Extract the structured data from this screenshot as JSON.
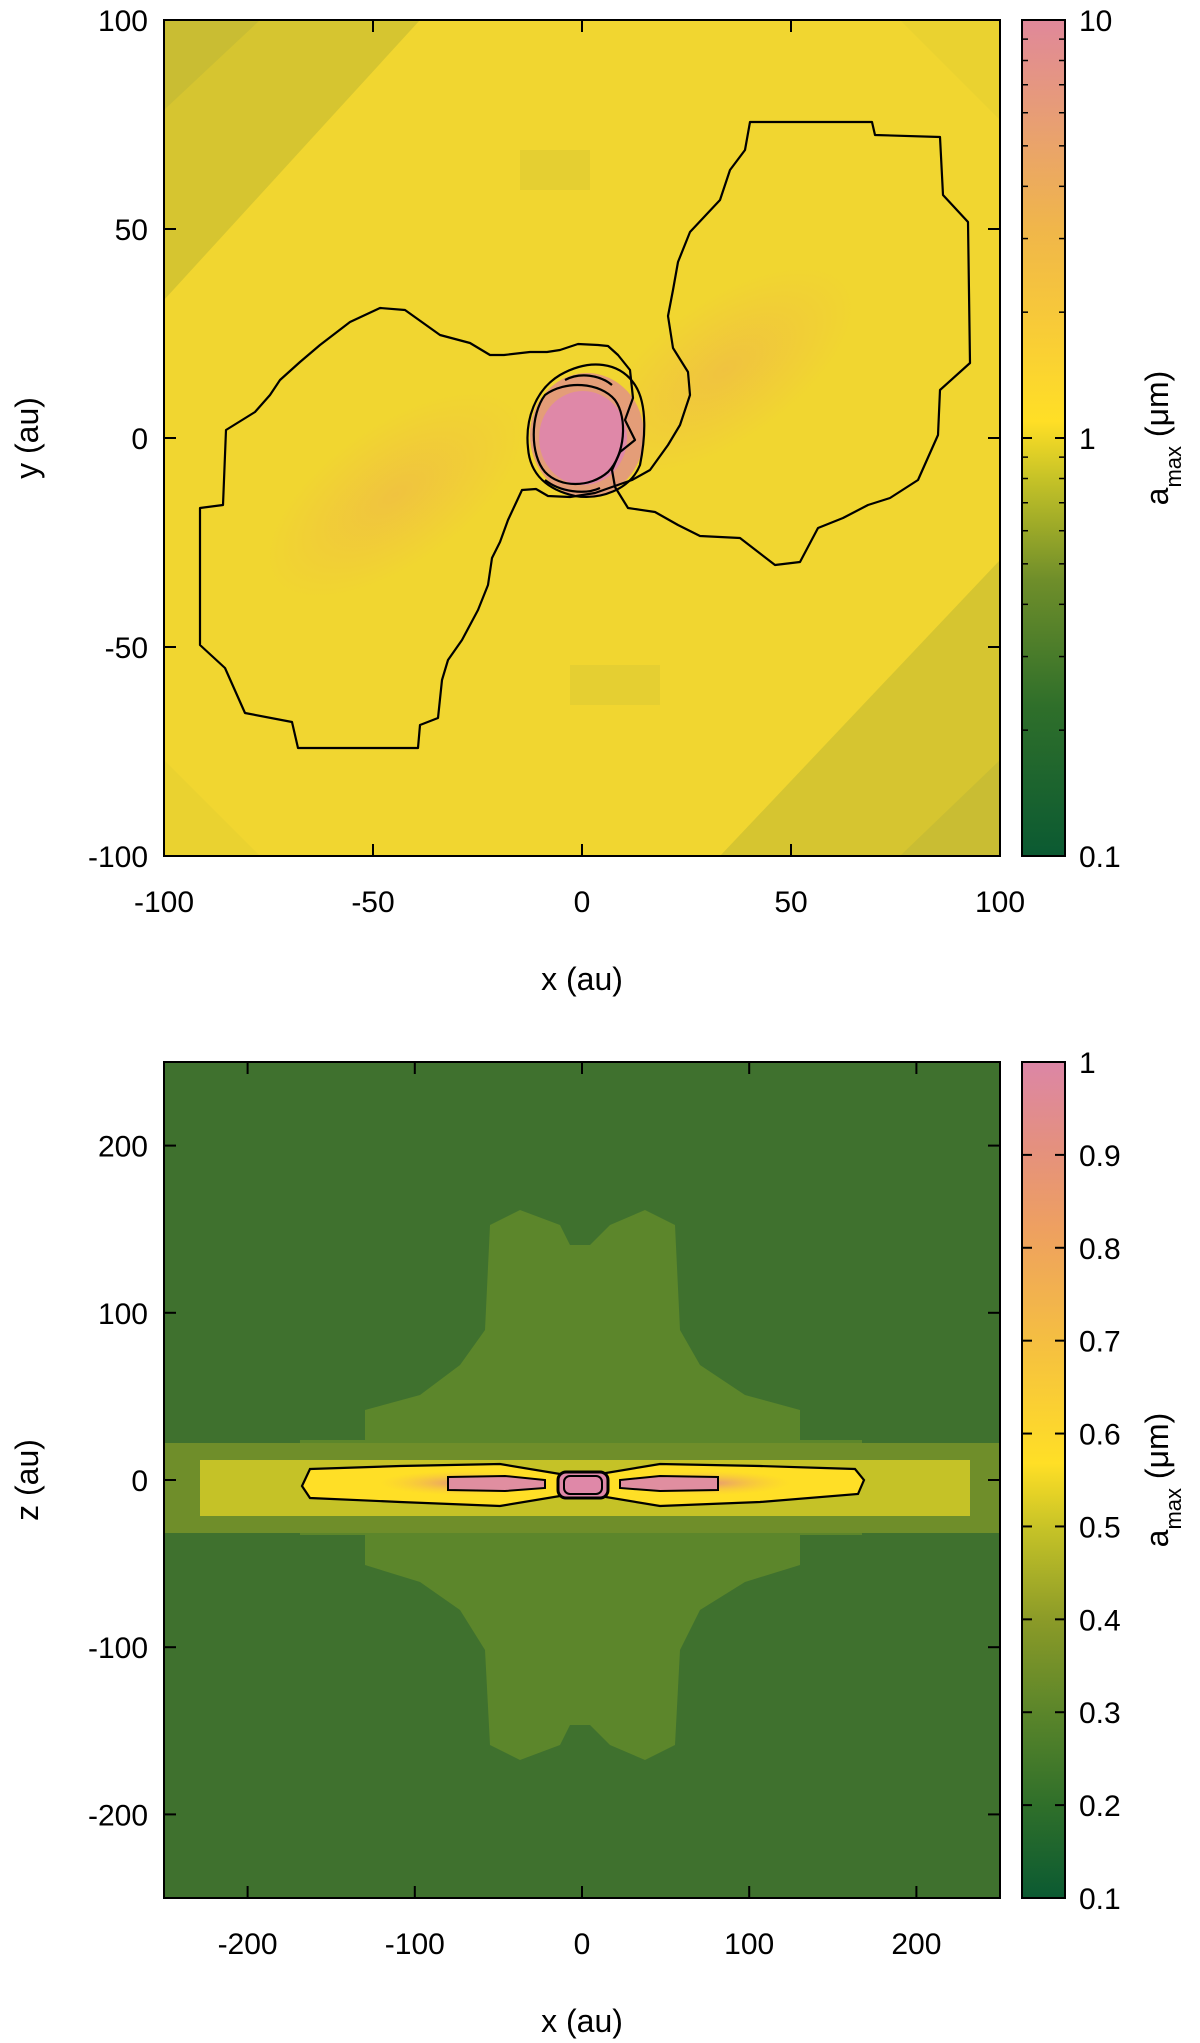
{
  "chart_data": [
    {
      "type": "heatmap",
      "panel": "top",
      "xlabel": "x (au)",
      "ylabel": "y (au)",
      "xlim": [
        -100,
        100
      ],
      "ylim": [
        -100,
        100
      ],
      "x_ticks": [
        "-100",
        "-50",
        "0",
        "50",
        "100"
      ],
      "y_ticks": [
        "100",
        "50",
        "0",
        "-50",
        "-100"
      ],
      "colorbar": {
        "label_main": "a",
        "label_sub": "max",
        "label_unit": " (μm)",
        "scale": "log",
        "range": [
          0.1,
          10
        ],
        "tick_labels": [
          "10",
          "1",
          "0.1"
        ],
        "colors": [
          "#0b5a32",
          "#2f6f2a",
          "#6f8e2a",
          "#c5c227",
          "#ffdf26",
          "#f0b64a",
          "#e0889a"
        ]
      },
      "background_color": "#f1d630",
      "corner_color": "#cdc032",
      "features": [
        {
          "name": "outer-bowtie-contour",
          "level": 1
        },
        {
          "name": "central-clump",
          "level": 10
        }
      ]
    },
    {
      "type": "heatmap",
      "panel": "bottom",
      "xlabel": "x (au)",
      "ylabel": "z (au)",
      "xlim": [
        -250,
        250
      ],
      "ylim": [
        -250,
        250
      ],
      "x_ticks": [
        "-200",
        "-100",
        "0",
        "100",
        "200"
      ],
      "y_ticks": [
        "200",
        "100",
        "0",
        "-100",
        "-200"
      ],
      "colorbar": {
        "label_main": "a",
        "label_sub": "max",
        "label_unit": " (μm)",
        "scale": "linear",
        "range": [
          0.1,
          1
        ],
        "tick_labels": [
          "1",
          "0.9",
          "0.8",
          "0.7",
          "0.6",
          "0.5",
          "0.4",
          "0.3",
          "0.2",
          "0.1"
        ],
        "colors": [
          "#0b5a32",
          "#2f6f2a",
          "#5a852a",
          "#8a9a28",
          "#c5c227",
          "#ffdf26",
          "#f5c040",
          "#eea060",
          "#e4907f",
          "#dc86a6"
        ]
      },
      "background_color": "#3f712e",
      "features": [
        {
          "name": "outflow-region",
          "level": 0.3
        },
        {
          "name": "midplane-disk",
          "level": 0.5
        }
      ]
    }
  ]
}
